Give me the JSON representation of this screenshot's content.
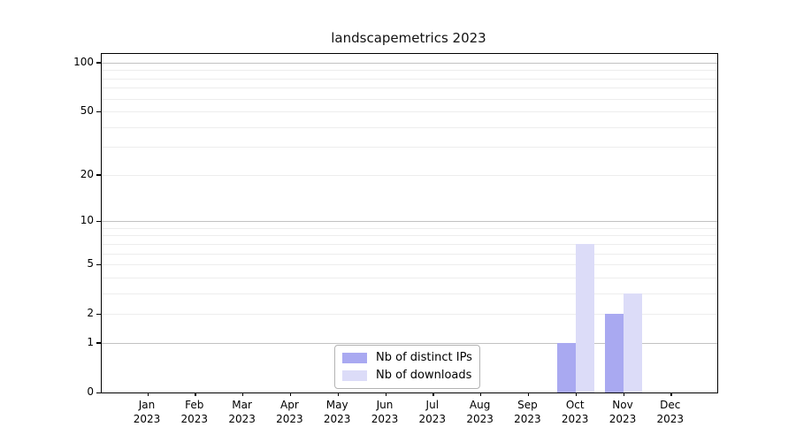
{
  "chart_data": {
    "type": "bar",
    "title": "landscapemetrics 2023",
    "categories": [
      "Jan 2023",
      "Feb 2023",
      "Mar 2023",
      "Apr 2023",
      "May 2023",
      "Jun 2023",
      "Jul 2023",
      "Aug 2023",
      "Sep 2023",
      "Oct 2023",
      "Nov 2023",
      "Dec 2023"
    ],
    "series": [
      {
        "name": "Nb of distinct IPs",
        "color": "#a9a9f1",
        "values": [
          0,
          0,
          0,
          0,
          0,
          0,
          0,
          0,
          0,
          1,
          2,
          0
        ]
      },
      {
        "name": "Nb of downloads",
        "color": "#dcdcf8",
        "values": [
          0,
          0,
          0,
          0,
          0,
          0,
          0,
          0,
          0,
          7,
          3,
          0
        ]
      }
    ],
    "xlabel": "",
    "ylabel": "",
    "yscale": "log1p",
    "ylim": [
      0,
      113
    ],
    "yticks_major": [
      0,
      1,
      2,
      5,
      10,
      20,
      50,
      100
    ],
    "yticks_minor": [
      3,
      4,
      6,
      7,
      8,
      9,
      30,
      40,
      60,
      70,
      80,
      90
    ],
    "grid": "horizontal",
    "grid_color_minor": "#ededed",
    "grid_color_decade": "#c2c2c2",
    "legend_position": "inside-bottom-center",
    "background": "#ffffff",
    "axis_color": "#000000"
  }
}
